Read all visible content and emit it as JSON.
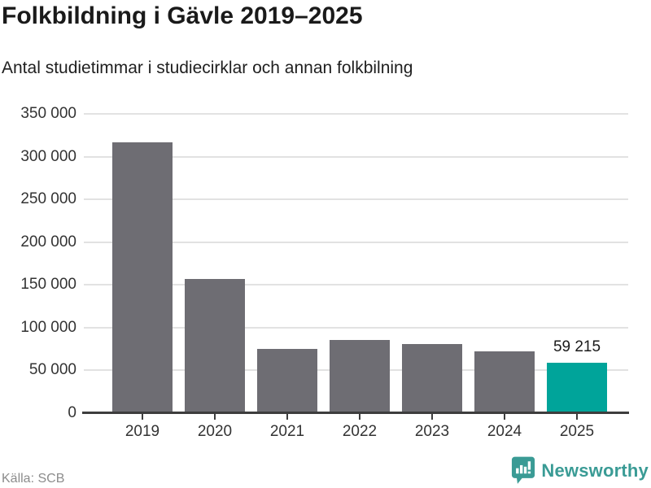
{
  "chart_data": {
    "type": "bar",
    "title": "Folkbildning i Gävle 2019–2025",
    "subtitle": "Antal studietimmar i studiecirklar och annan folkbilning",
    "categories": [
      "2019",
      "2020",
      "2021",
      "2022",
      "2023",
      "2024",
      "2025"
    ],
    "values": [
      317000,
      157000,
      75000,
      86000,
      81000,
      72000,
      59215
    ],
    "ylim": [
      0,
      350000
    ],
    "yticks": [
      {
        "value": 350000,
        "label": "350 000"
      },
      {
        "value": 300000,
        "label": "300 000"
      },
      {
        "value": 250000,
        "label": "250 000"
      },
      {
        "value": 200000,
        "label": "200 000"
      },
      {
        "value": 150000,
        "label": "150 000"
      },
      {
        "value": 100000,
        "label": "100 000"
      },
      {
        "value": 50000,
        "label": "50 000"
      },
      {
        "value": 0,
        "label": "0"
      }
    ],
    "grid": true,
    "legend": "none",
    "highlight": {
      "index": 6,
      "label": "59 215"
    },
    "colors": {
      "bar": "#6E6D73",
      "highlight": "#00A49A",
      "gridline": "#E2E2E2",
      "axis": "#3D3D3D",
      "tick_label": "#333333"
    }
  },
  "footer": {
    "source": "Källa: SCB",
    "brand": {
      "name": "Newsworthy",
      "color": "#3A9B95",
      "icon": "newsworthy-chart-bubble-icon"
    }
  }
}
